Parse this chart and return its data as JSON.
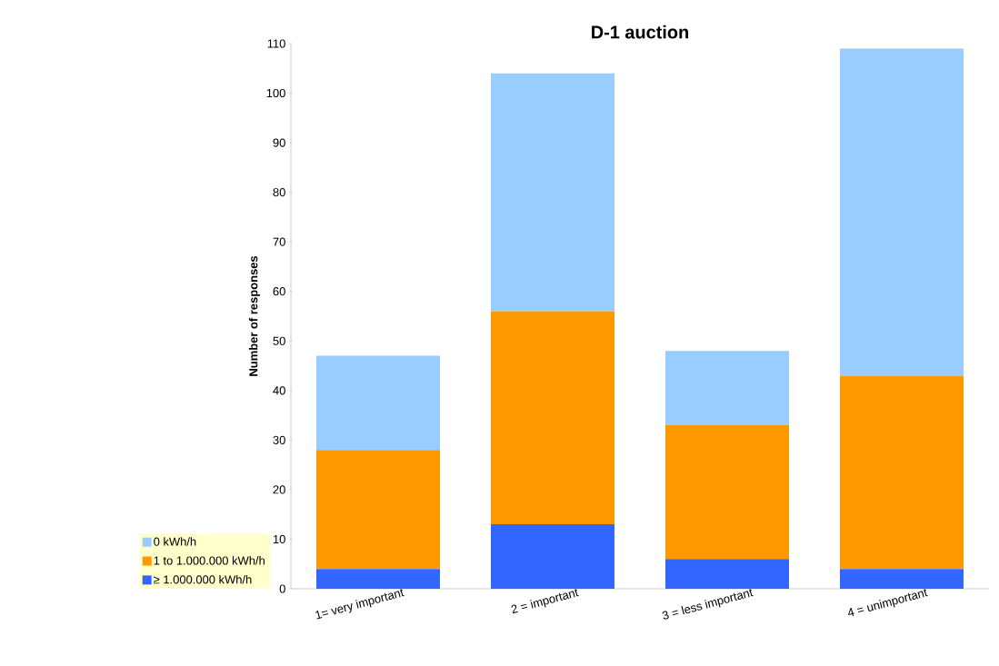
{
  "chart_data": {
    "type": "bar",
    "stacked": true,
    "title": "D-1 auction",
    "ylabel": "Number of responses",
    "categories": [
      "1= very important",
      "2 = important",
      "3 = less important",
      "4 = unimportant"
    ],
    "series": [
      {
        "name": "≥ 1.000.000 kWh/h",
        "color": "#3366ff",
        "values": [
          4,
          13,
          6,
          4
        ]
      },
      {
        "name": "1 to 1.000.000 kWh/h",
        "color": "#ff9900",
        "values": [
          24,
          43,
          27,
          39
        ]
      },
      {
        "name": "0 kWh/h",
        "color": "#99ccff",
        "values": [
          19,
          48,
          15,
          66
        ]
      }
    ],
    "ylim": [
      0,
      110
    ],
    "yticks": [
      0,
      10,
      20,
      30,
      40,
      50,
      60,
      70,
      80,
      90,
      100,
      110
    ],
    "grid": false,
    "legend": "bottom left"
  }
}
